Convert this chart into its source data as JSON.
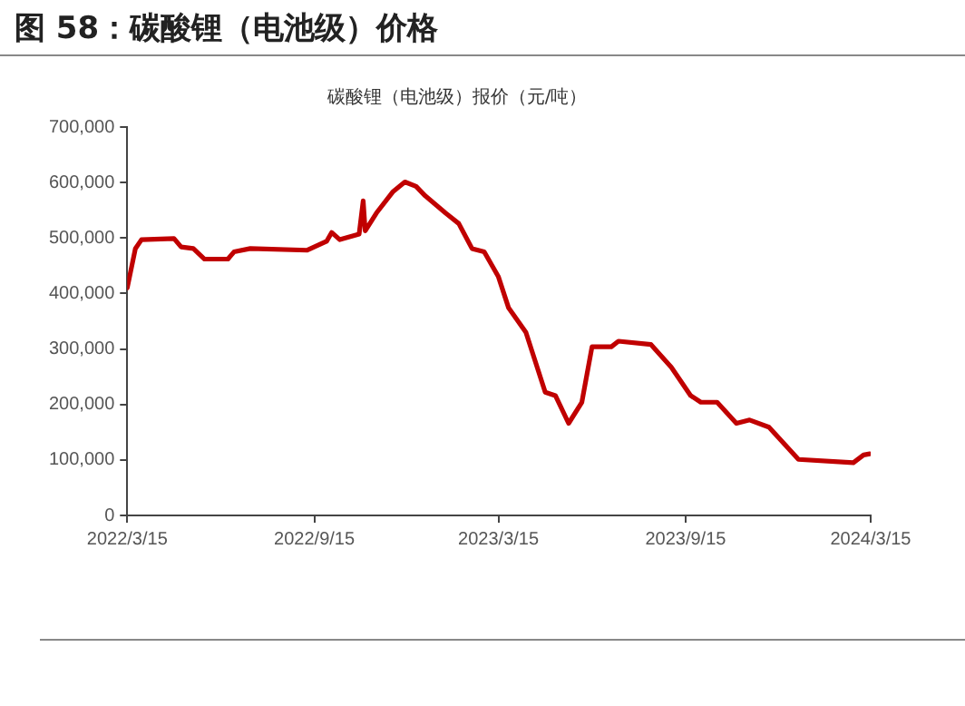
{
  "chart_data": {
    "type": "line",
    "title": "图 58：碳酸锂（电池级）价格",
    "subtitle": "碳酸锂（电池级）报价（元/吨）",
    "x": [
      "2022-03-15",
      "2022-03-23",
      "2022-03-29",
      "2022-04-30",
      "2022-05-07",
      "2022-05-19",
      "2022-05-30",
      "2022-06-22",
      "2022-06-28",
      "2022-07-14",
      "2022-09-08",
      "2022-09-27",
      "2022-10-02",
      "2022-10-10",
      "2022-10-29",
      "2022-11-02",
      "2022-11-04",
      "2022-11-15",
      "2022-12-01",
      "2022-12-13",
      "2022-12-24",
      "2023-01-02",
      "2023-01-22",
      "2023-02-04",
      "2023-02-17",
      "2023-03-01",
      "2023-03-15",
      "2023-03-25",
      "2023-04-11",
      "2023-04-30",
      "2023-05-10",
      "2023-05-23",
      "2023-06-05",
      "2023-06-15",
      "2023-07-04",
      "2023-07-11",
      "2023-08-12",
      "2023-09-01",
      "2023-09-20",
      "2023-09-30",
      "2023-10-16",
      "2023-11-04",
      "2023-11-17",
      "2023-12-06",
      "2024-01-04",
      "2024-02-27",
      "2024-03-08",
      "2024-03-14"
    ],
    "series": [
      {
        "color": "#c00000",
        "values": [
          410000,
          481000,
          497000,
          499000,
          484000,
          481000,
          462000,
          462000,
          475000,
          481000,
          478000,
          494000,
          510000,
          497000,
          507000,
          567000,
          513000,
          545000,
          583000,
          601000,
          593000,
          576000,
          545000,
          526000,
          481000,
          475000,
          430000,
          374000,
          330000,
          222000,
          216000,
          166000,
          204000,
          304000,
          304000,
          314000,
          308000,
          267000,
          216000,
          204000,
          204000,
          166000,
          172000,
          159000,
          101000,
          95000,
          109000,
          111000
        ]
      }
    ],
    "xlim": [
      "2022-03-15",
      "2024-03-15"
    ],
    "xticks": [
      {
        "value": "2022-03-15",
        "label": "2022/3/15"
      },
      {
        "value": "2022-09-15",
        "label": "2022/9/15"
      },
      {
        "value": "2023-03-15",
        "label": "2023/3/15"
      },
      {
        "value": "2023-09-15",
        "label": "2023/9/15"
      },
      {
        "value": "2024-03-15",
        "label": "2024/3/15"
      }
    ],
    "ylim": [
      0,
      700000
    ],
    "yticks": [
      0,
      {
        "value": 100000,
        "label": "100,000"
      },
      {
        "value": 200000,
        "label": "200,000"
      },
      {
        "value": 300000,
        "label": "300,000"
      },
      {
        "value": 400000,
        "label": "400,000"
      },
      {
        "value": 500000,
        "label": "500,000"
      },
      {
        "value": 600000,
        "label": "600,000"
      },
      {
        "value": 700000,
        "label": "700,000"
      }
    ],
    "grid": false,
    "legend": false,
    "marker": "none",
    "line_style": "solid"
  }
}
